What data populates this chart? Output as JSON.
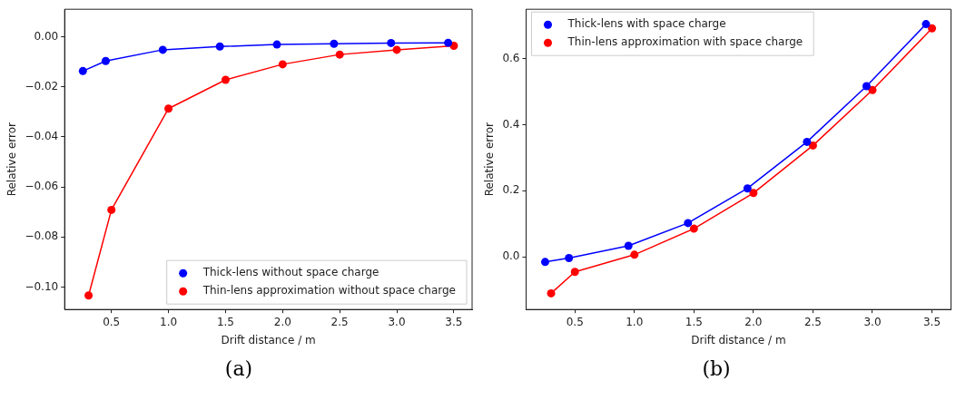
{
  "chart_data": [
    {
      "type": "line",
      "xlabel": "Drift distance / m",
      "ylabel": "Relative error",
      "annotations": [
        "(a)"
      ],
      "xlim": [
        0.09,
        3.66
      ],
      "xticks": [
        {
          "value": 0.5,
          "label": "0.5"
        },
        {
          "value": 1,
          "label": "1.0"
        },
        {
          "value": 1.5,
          "label": "1.5"
        },
        {
          "value": 2,
          "label": "2.0"
        },
        {
          "value": 2.5,
          "label": "2.5"
        },
        {
          "value": 3,
          "label": "3.0"
        },
        {
          "value": 3.5,
          "label": "3.5"
        }
      ],
      "ylim": [
        -0.109,
        0.011
      ],
      "yticks": [
        {
          "value": 0,
          "label": "0.00"
        },
        {
          "value": -0.02,
          "label": "−0.02"
        },
        {
          "value": -0.04,
          "label": "−0.04"
        },
        {
          "value": -0.06,
          "label": "−0.06"
        },
        {
          "value": -0.08,
          "label": "−0.08"
        },
        {
          "value": -0.1,
          "label": "−0.10"
        }
      ],
      "grid": false,
      "legend": "bottom right",
      "marker": "circle",
      "line_style": "solid",
      "series": [
        {
          "name": "Thick-lens without space charge",
          "color": "#0000ff",
          "x": [
            0.25,
            0.45,
            0.95,
            1.45,
            1.95,
            2.45,
            2.95,
            3.45
          ],
          "values": [
            -0.0137,
            -0.0097,
            -0.0052,
            -0.0039,
            -0.0031,
            -0.0028,
            -0.0025,
            -0.0024
          ]
        },
        {
          "name": "Thin-lens approximation without space charge",
          "color": "#ff0000",
          "x": [
            0.3,
            0.5,
            1.0,
            1.5,
            2.0,
            2.5,
            3.0,
            3.5
          ],
          "values": [
            -0.1034,
            -0.0692,
            -0.0287,
            -0.0172,
            -0.011,
            -0.0071,
            -0.0052,
            -0.0036
          ]
        }
      ]
    },
    {
      "type": "line",
      "xlabel": "Drift distance / m",
      "ylabel": "Relative error",
      "annotations": [
        "(b)"
      ],
      "xlim": [
        0.09,
        3.66
      ],
      "xticks": [
        {
          "value": 0.5,
          "label": "0.5"
        },
        {
          "value": 1,
          "label": "1.0"
        },
        {
          "value": 1.5,
          "label": "1.5"
        },
        {
          "value": 2,
          "label": "2.0"
        },
        {
          "value": 2.5,
          "label": "2.5"
        },
        {
          "value": 3,
          "label": "3.0"
        },
        {
          "value": 3.5,
          "label": "3.5"
        }
      ],
      "ylim": [
        -0.16,
        0.75
      ],
      "yticks": [
        {
          "value": 0,
          "label": "0.0"
        },
        {
          "value": 0.2,
          "label": "0.2"
        },
        {
          "value": 0.4,
          "label": "0.4"
        },
        {
          "value": 0.6,
          "label": "0.6"
        }
      ],
      "grid": false,
      "legend": "top left",
      "marker": "circle",
      "line_style": "solid",
      "series": [
        {
          "name": "Thick-lens with space charge",
          "color": "#0000ff",
          "x": [
            0.25,
            0.45,
            0.95,
            1.45,
            1.95,
            2.45,
            2.95,
            3.45
          ],
          "values": [
            -0.016,
            -0.004,
            0.033,
            0.102,
            0.207,
            0.348,
            0.517,
            0.705
          ]
        },
        {
          "name": "Thin-lens approximation with space charge",
          "color": "#ff0000",
          "x": [
            0.3,
            0.5,
            1.0,
            1.5,
            2.0,
            2.5,
            3.0,
            3.5
          ],
          "values": [
            -0.111,
            -0.046,
            0.006,
            0.085,
            0.193,
            0.337,
            0.505,
            0.692
          ]
        }
      ]
    }
  ]
}
